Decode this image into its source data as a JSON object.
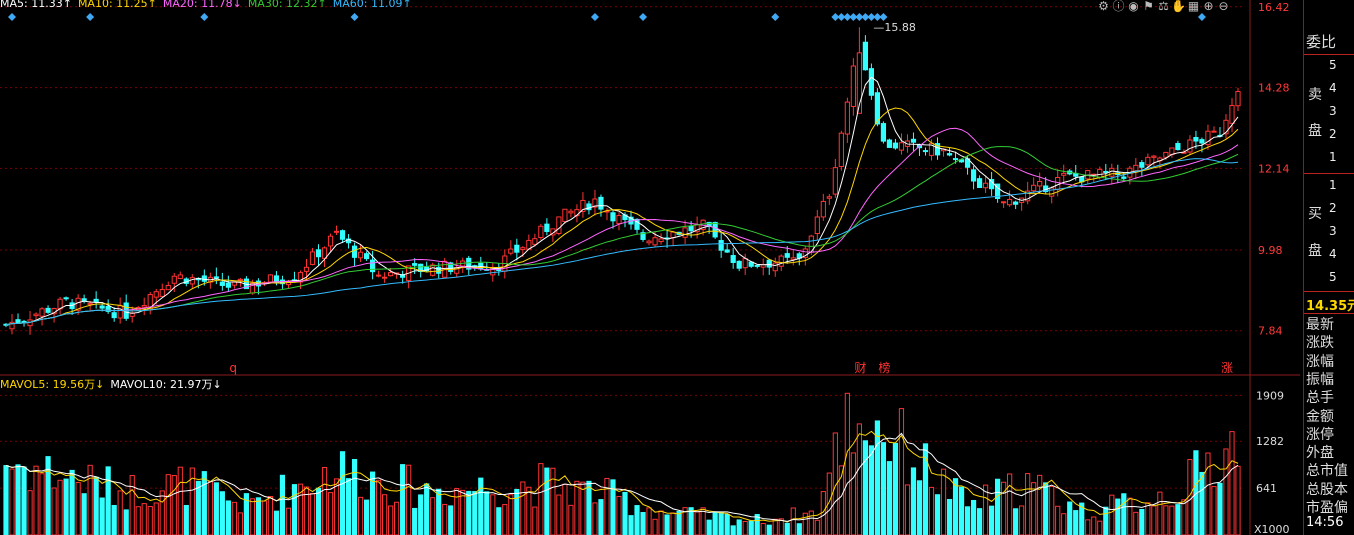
{
  "toolbar_icons": [
    "gear-icon",
    "info-icon",
    "eye-icon",
    "flag-icon",
    "scale-icon",
    "hand-icon",
    "grid-icon",
    "plus-icon",
    "minus-icon"
  ],
  "ma_legend": [
    {
      "label": "MA5: 11.33↑",
      "color": "#ffffff"
    },
    {
      "label": "MA10: 11.25↑",
      "color": "#ffd700"
    },
    {
      "label": "MA20: 11.78↓",
      "color": "#ff66ff"
    },
    {
      "label": "MA30: 12.32↑",
      "color": "#33cc33"
    },
    {
      "label": "MA60: 11.09↑",
      "color": "#33bbff"
    }
  ],
  "vol_legend": [
    {
      "label": "MAVOL5: 19.56万↓",
      "color": "#ffd700"
    },
    {
      "label": "MAVOL10: 21.97万↓",
      "color": "#ffffff"
    }
  ],
  "chart_data": {
    "type": "candlestick",
    "price_axis": {
      "ticks": [
        16.42,
        14.28,
        12.14,
        9.98,
        7.84
      ],
      "range": [
        6.8,
        16.6
      ]
    },
    "volume_axis": {
      "ticks": [
        1909,
        1282,
        641
      ],
      "unit_label": "X1000",
      "range": [
        0,
        2050
      ]
    },
    "peak_label": "15.88",
    "markers": [
      {
        "label": "q",
        "index": 38,
        "color": "#ff3333"
      },
      {
        "label": "财",
        "index": 142,
        "color": "#ff3333"
      },
      {
        "label": "榜",
        "index": 146,
        "color": "#ff3333"
      },
      {
        "label": "涨",
        "index": 203,
        "color": "#ff3333"
      }
    ],
    "colors": {
      "up": "#ff3333",
      "down": "#33ffff",
      "ma5": "#ffffff",
      "ma10": "#ffd700",
      "ma20": "#ff66ff",
      "ma30": "#33cc33",
      "ma60": "#33bbff",
      "grid": "#7a0000"
    },
    "waypoints": [
      [
        0,
        8.0
      ],
      [
        10,
        8.6
      ],
      [
        20,
        8.3
      ],
      [
        28,
        9.3
      ],
      [
        38,
        9.0
      ],
      [
        48,
        9.3
      ],
      [
        55,
        10.4
      ],
      [
        62,
        9.3
      ],
      [
        70,
        9.5
      ],
      [
        82,
        9.6
      ],
      [
        92,
        10.8
      ],
      [
        98,
        11.3
      ],
      [
        106,
        10.3
      ],
      [
        116,
        10.6
      ],
      [
        122,
        9.6
      ],
      [
        132,
        9.7
      ],
      [
        137,
        11.5
      ],
      [
        142,
        15.5
      ],
      [
        146,
        12.8
      ],
      [
        156,
        12.6
      ],
      [
        166,
        11.2
      ],
      [
        176,
        11.9
      ],
      [
        186,
        12.0
      ],
      [
        196,
        12.7
      ],
      [
        202,
        13.1
      ],
      [
        205,
        14.35
      ]
    ],
    "volume_waypoints": [
      [
        0,
        1000
      ],
      [
        20,
        600
      ],
      [
        30,
        700
      ],
      [
        40,
        400
      ],
      [
        55,
        900
      ],
      [
        70,
        600
      ],
      [
        90,
        700
      ],
      [
        100,
        550
      ],
      [
        110,
        300
      ],
      [
        125,
        200
      ],
      [
        135,
        300
      ],
      [
        140,
        1600
      ],
      [
        145,
        1500
      ],
      [
        160,
        400
      ],
      [
        170,
        700
      ],
      [
        180,
        300
      ],
      [
        195,
        600
      ],
      [
        205,
        1300
      ]
    ],
    "count": 206
  },
  "side_panel": {
    "wei_bi": "委比",
    "sell_label": [
      "卖",
      "盘"
    ],
    "buy_label": [
      "买",
      "盘"
    ],
    "sell_levels": [
      "5",
      "4",
      "3",
      "2",
      "1"
    ],
    "buy_levels": [
      "1",
      "2",
      "3",
      "4",
      "5"
    ],
    "price": "14.35元",
    "fields": [
      "最新",
      "涨跌",
      "涨幅",
      "振幅",
      "总手",
      "金额",
      "涨停",
      "外盘",
      "总市值",
      "总股本",
      "市盈偏"
    ],
    "time": "14:56"
  }
}
